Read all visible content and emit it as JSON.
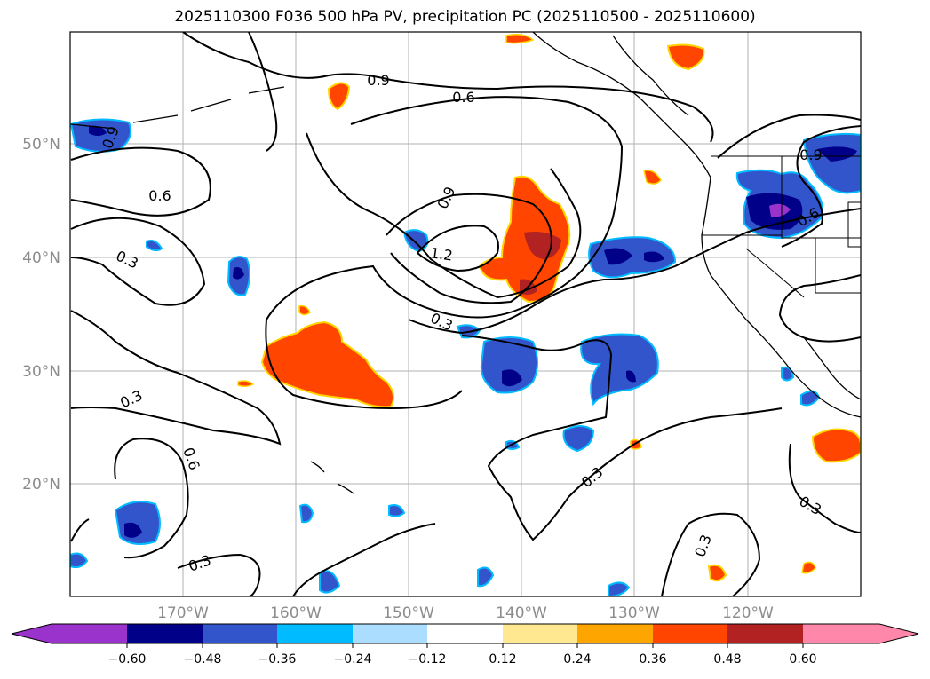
{
  "title": "2025110300 F036 500 hPa PV, precipitation PC (2025110500 - 2025110600)",
  "map": {
    "region": "North Pacific Ocean and western North America",
    "lat_labels": [
      "50°N",
      "40°N",
      "30°N",
      "20°N"
    ],
    "lon_labels": [
      "170°W",
      "160°W",
      "150°W",
      "140°W",
      "130°W",
      "120°W"
    ],
    "contour_labels": [
      "0.9",
      "0.6",
      "0.9",
      "0.6",
      "0.3",
      "0.9",
      "1.2",
      "0.3",
      "0.3",
      "0.6",
      "0.3",
      "0.3",
      "0.3",
      "0.3",
      "0.9",
      "0.6"
    ]
  },
  "colorbar": {
    "ticks": [
      "−0.60",
      "−0.48",
      "−0.36",
      "−0.24",
      "−0.12",
      "0.12",
      "0.24",
      "0.36",
      "0.48",
      "0.60"
    ],
    "colors": [
      "#9933cc",
      "#000088",
      "#3355cc",
      "#00bbff",
      "#aaddff",
      "#ffffff",
      "#ffe88f",
      "#ffa500",
      "#ff4500",
      "#b22222",
      "#ff88aa"
    ]
  }
}
